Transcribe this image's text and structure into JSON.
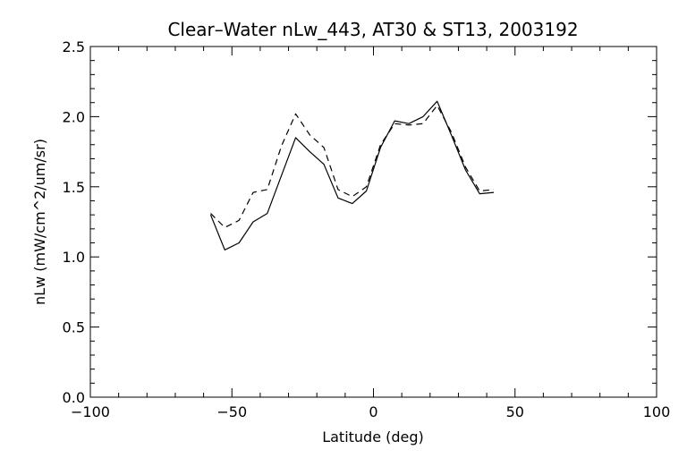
{
  "chart_data": {
    "type": "line",
    "title": "Clear–Water nLw_443, AT30 & ST13, 2003192",
    "xlabel": "Latitude (deg)",
    "ylabel": "nLw (mW/cm^2/um/sr)",
    "xlim": [
      -100,
      100
    ],
    "ylim": [
      0,
      2.5
    ],
    "xticks": [
      -100,
      -50,
      0,
      50,
      100
    ],
    "xtick_labels": [
      "−100",
      "−50",
      "0",
      "50",
      "100"
    ],
    "yticks": [
      0,
      0.5,
      1,
      1.5,
      2,
      2.5
    ],
    "ytick_labels": [
      "0.0",
      "0.5",
      "1.0",
      "1.5",
      "2.0",
      "2.5"
    ],
    "x_minor_step": 10,
    "y_minor_step": 0.1,
    "grid": false,
    "series": [
      {
        "style": "solid",
        "color": "#000000",
        "x": [
          -57.5,
          -52.5,
          -47.5,
          -42.5,
          -37.5,
          -32.5,
          -27.5,
          -22.5,
          -17.5,
          -12.5,
          -7.5,
          -2.5,
          2.5,
          7.5,
          12.5,
          17.5,
          22.5,
          27.5,
          32.5,
          37.5,
          42.5
        ],
        "y": [
          1.3,
          1.05,
          1.1,
          1.25,
          1.31,
          1.58,
          1.85,
          1.75,
          1.66,
          1.42,
          1.38,
          1.47,
          1.78,
          1.97,
          1.95,
          2.0,
          2.11,
          1.87,
          1.62,
          1.45,
          1.46
        ]
      },
      {
        "style": "dashed",
        "color": "#000000",
        "x": [
          -57.5,
          -52.5,
          -47.5,
          -42.5,
          -37.5,
          -32.5,
          -27.5,
          -22.5,
          -17.5,
          -12.5,
          -7.5,
          -2.5,
          2.5,
          7.5,
          12.5,
          17.5,
          22.5,
          27.5,
          32.5,
          37.5,
          42.5
        ],
        "y": [
          1.31,
          1.21,
          1.26,
          1.46,
          1.48,
          1.79,
          2.02,
          1.87,
          1.78,
          1.48,
          1.43,
          1.5,
          1.8,
          1.95,
          1.94,
          1.95,
          2.08,
          1.89,
          1.64,
          1.47,
          1.48
        ]
      }
    ]
  }
}
